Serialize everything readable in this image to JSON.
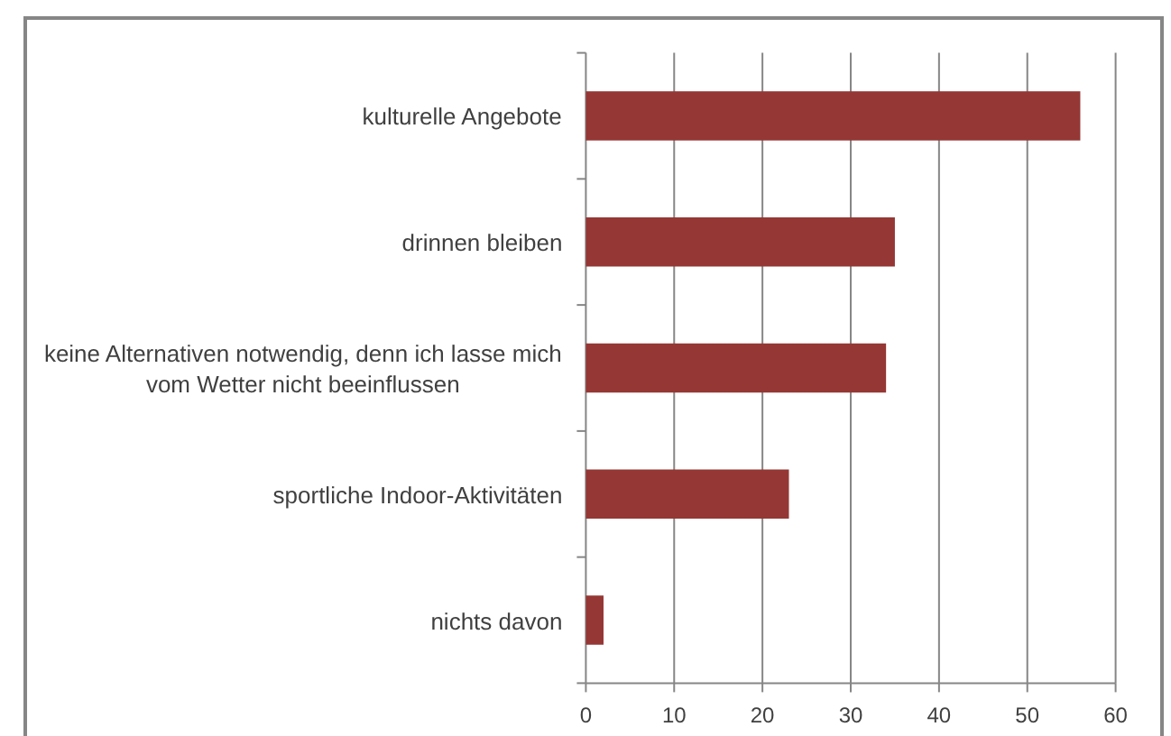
{
  "chart_data": {
    "type": "bar",
    "orientation": "horizontal",
    "categories": [
      "kulturelle Angebote",
      "drinnen bleiben",
      "keine Alternativen notwendig, denn ich lasse mich vom Wetter nicht beeinflussen",
      "sportliche Indoor-Aktivitäten",
      "nichts davon"
    ],
    "values": [
      56,
      35,
      34,
      23,
      2
    ],
    "color": "#953735",
    "xlim": [
      0,
      60
    ],
    "xticks": [
      0,
      10,
      20,
      30,
      40,
      50,
      60
    ],
    "grid": "x"
  }
}
